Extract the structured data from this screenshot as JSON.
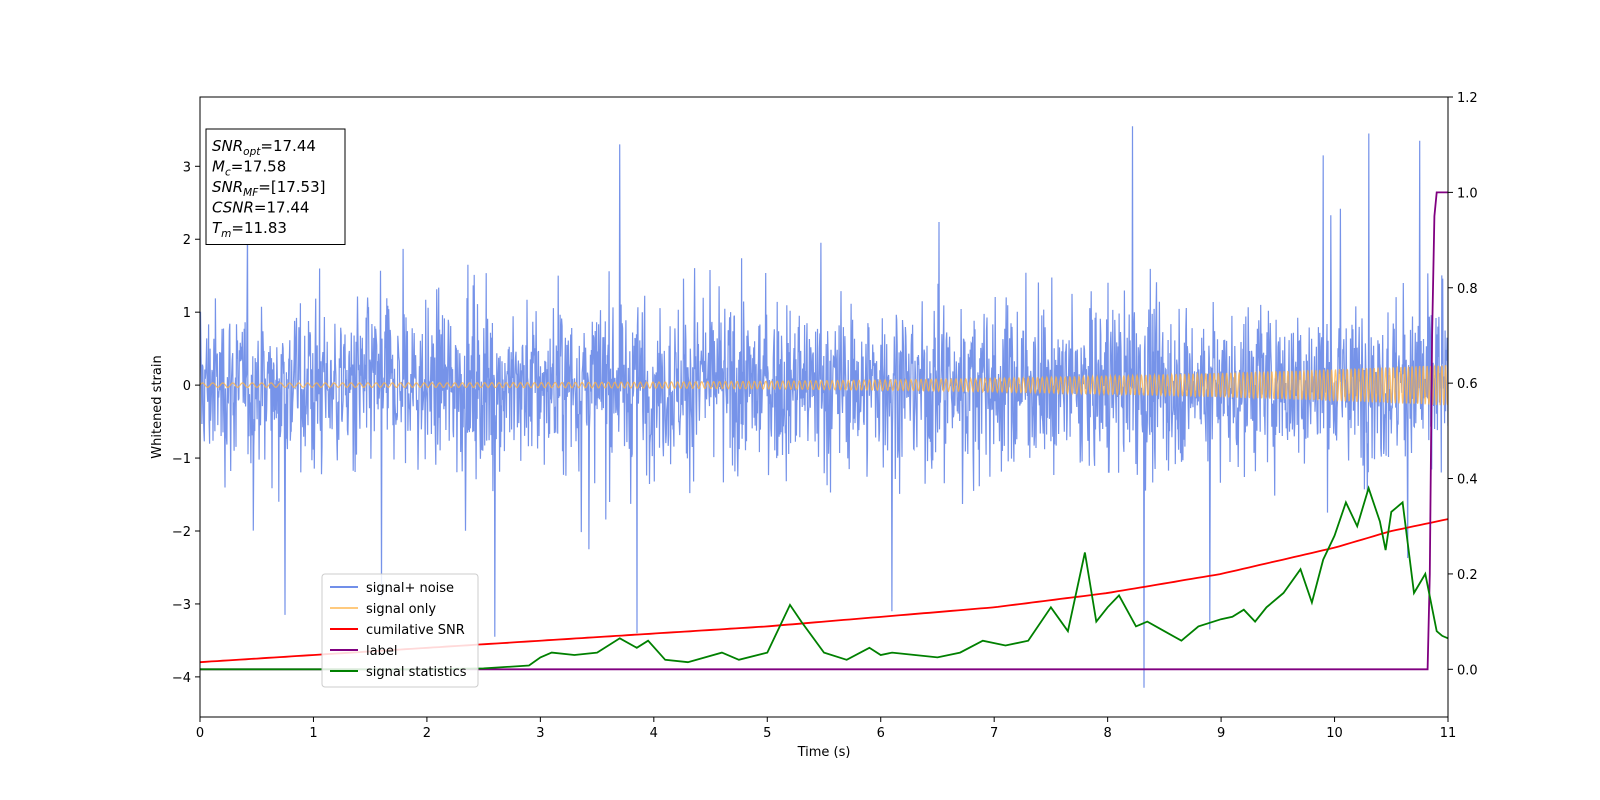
{
  "chart_data": {
    "type": "line",
    "xlabel": "Time (s)",
    "ylabel": "Whitened strain",
    "xlim": [
      0,
      11
    ],
    "ylim_left": [
      -4.55,
      3.95
    ],
    "ylim_right": [
      -0.1,
      1.2
    ],
    "x_ticks": [
      "0",
      "1",
      "2",
      "3",
      "4",
      "5",
      "6",
      "7",
      "8",
      "9",
      "10",
      "11"
    ],
    "y_left_ticks": [
      "3",
      "2",
      "1",
      "0",
      "−1",
      "−2",
      "−3",
      "−4"
    ],
    "y_right_ticks": [
      "1.2",
      "1.0",
      "0.8",
      "0.6",
      "0.4",
      "0.2",
      "0.0"
    ],
    "grid": false,
    "legend_position": "lower-left",
    "annotation": {
      "lines": [
        {
          "base": "SNR",
          "sub": "opt",
          "value": "=17.44"
        },
        {
          "base": "M",
          "sub": "c",
          "value": "=17.58"
        },
        {
          "base": "SNR",
          "sub": "MF",
          "value": "=[17.53]"
        },
        {
          "base": "CSNR",
          "sub": "",
          "value": "=17.44"
        },
        {
          "base": "T",
          "sub": "m",
          "value": "=11.83"
        }
      ]
    },
    "series": [
      {
        "name": "signal+ noise",
        "axis": "left",
        "color": "#4169e1",
        "kind": "noise",
        "typical_range": [
          -1.6,
          1.6
        ],
        "peaks": [
          [
            0.75,
            -3.15
          ],
          [
            1.6,
            -2.9
          ],
          [
            2.6,
            -3.45
          ],
          [
            3.7,
            3.3
          ],
          [
            3.85,
            -3.4
          ],
          [
            6.1,
            -3.1
          ],
          [
            8.22,
            3.55
          ],
          [
            8.32,
            -4.15
          ],
          [
            8.9,
            -3.35
          ],
          [
            10.3,
            3.45
          ],
          [
            10.75,
            3.35
          ],
          [
            9.9,
            3.15
          ]
        ]
      },
      {
        "name": "signal only",
        "axis": "left",
        "color": "#ffb347",
        "kind": "chirp",
        "amplitude_start": 0.03,
        "amplitude_end": 0.28
      },
      {
        "name": "cumilative SNR",
        "axis": "right",
        "color": "#ff0000",
        "x": [
          0,
          1,
          2,
          3,
          4,
          5,
          6,
          7,
          8,
          9,
          10,
          10.5,
          11
        ],
        "values": [
          0.015,
          0.03,
          0.045,
          0.06,
          0.075,
          0.09,
          0.11,
          0.13,
          0.16,
          0.2,
          0.255,
          0.29,
          0.315
        ]
      },
      {
        "name": "label",
        "axis": "right",
        "color": "#800080",
        "x": [
          0,
          10.82,
          10.84,
          10.86,
          10.88,
          10.9,
          11
        ],
        "values": [
          0,
          0,
          0.2,
          0.7,
          0.95,
          1,
          1
        ]
      },
      {
        "name": "signal statistics",
        "axis": "right",
        "color": "#008000",
        "x": [
          0,
          1,
          2,
          2.5,
          2.9,
          3.0,
          3.1,
          3.3,
          3.5,
          3.7,
          3.85,
          3.95,
          4.1,
          4.3,
          4.6,
          4.75,
          5.0,
          5.2,
          5.3,
          5.5,
          5.7,
          5.9,
          6.0,
          6.1,
          6.3,
          6.5,
          6.7,
          6.9,
          7.1,
          7.3,
          7.5,
          7.65,
          7.8,
          7.9,
          8.0,
          8.1,
          8.25,
          8.35,
          8.5,
          8.65,
          8.8,
          9.0,
          9.1,
          9.2,
          9.3,
          9.4,
          9.55,
          9.7,
          9.8,
          9.9,
          10.0,
          10.1,
          10.2,
          10.3,
          10.4,
          10.45,
          10.5,
          10.6,
          10.7,
          10.8,
          10.9,
          10.95,
          11
        ],
        "values": [
          0,
          0,
          0,
          0.002,
          0.008,
          0.025,
          0.035,
          0.03,
          0.035,
          0.065,
          0.045,
          0.06,
          0.02,
          0.015,
          0.035,
          0.02,
          0.035,
          0.135,
          0.1,
          0.035,
          0.02,
          0.045,
          0.03,
          0.035,
          0.03,
          0.025,
          0.035,
          0.06,
          0.05,
          0.06,
          0.13,
          0.08,
          0.245,
          0.1,
          0.13,
          0.155,
          0.09,
          0.1,
          0.08,
          0.06,
          0.09,
          0.105,
          0.11,
          0.125,
          0.1,
          0.13,
          0.16,
          0.21,
          0.14,
          0.23,
          0.28,
          0.35,
          0.3,
          0.38,
          0.31,
          0.25,
          0.33,
          0.35,
          0.16,
          0.2,
          0.08,
          0.07,
          0.065
        ]
      }
    ]
  }
}
